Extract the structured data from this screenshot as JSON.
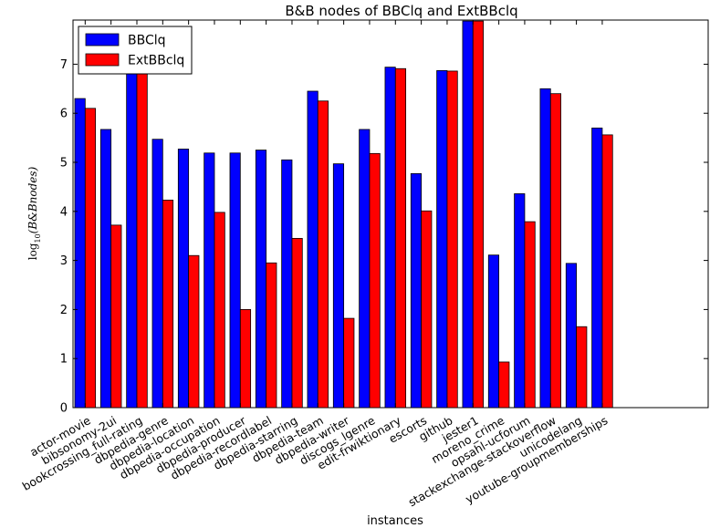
{
  "chart_data": {
    "type": "bar",
    "title": "B&B nodes of BBClq and ExtBBclq",
    "xlabel": "instances",
    "ylabel": "log10(B&Bnodes)",
    "ylim": [
      0,
      7.9
    ],
    "yticks": [
      "0",
      "1",
      "2",
      "3",
      "4",
      "5",
      "6",
      "7"
    ],
    "legend_position": "top-left",
    "grid": false,
    "categories": [
      "actor-movie",
      "bibsonomy-2ui",
      "bookcrossing_full-rating",
      "dbpedia-genre",
      "dbpedia-location",
      "dbpedia-occupation",
      "dbpedia-producer",
      "dbpedia-recordlabel",
      "dbpedia-starring",
      "dbpedia-team",
      "dbpedia-writer",
      "discogs_lgenre",
      "edit-frwiktionary",
      "escorts",
      "github",
      "jester1",
      "moreno_crime",
      "opsahl-ucforum",
      "stackexchange-stackoverflow",
      "unicodelang",
      "youtube-groupmemberships"
    ],
    "series": [
      {
        "name": "BBClq",
        "color": "#0000ff",
        "values": [
          6.3,
          5.67,
          6.85,
          5.47,
          5.27,
          5.19,
          5.19,
          5.25,
          5.05,
          6.45,
          4.97,
          5.67,
          6.94,
          4.77,
          6.87,
          7.88,
          3.11,
          4.36,
          6.5,
          2.94,
          5.7
        ]
      },
      {
        "name": "ExtBBclq",
        "color": "#ff0000",
        "values": [
          6.1,
          3.72,
          6.82,
          4.23,
          3.1,
          3.98,
          2.0,
          2.95,
          3.45,
          6.25,
          1.82,
          5.18,
          6.91,
          4.01,
          6.86,
          7.88,
          0.93,
          3.79,
          6.4,
          1.65,
          5.56
        ]
      }
    ]
  }
}
